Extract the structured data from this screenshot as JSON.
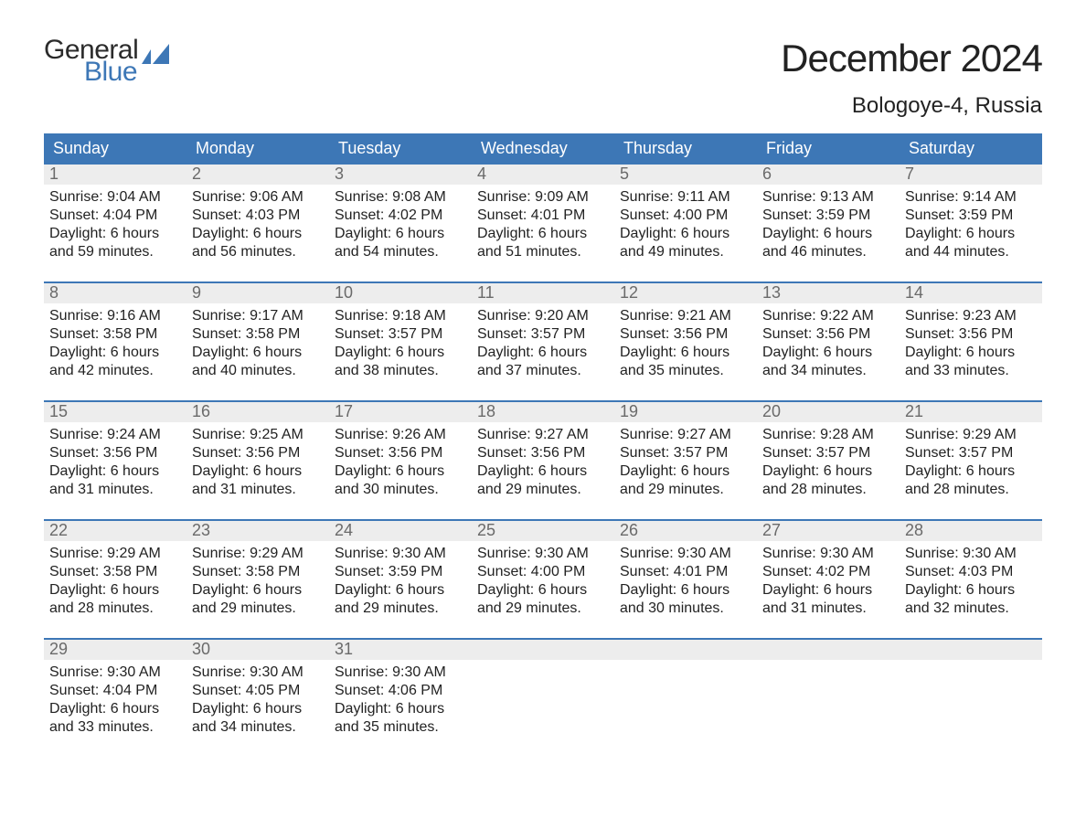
{
  "logo": {
    "word1": "General",
    "word2": "Blue",
    "text_color": "#2b2b2b",
    "accent_color": "#3d77b6"
  },
  "title": "December 2024",
  "location": "Bologoye-4, Russia",
  "colors": {
    "header_bg": "#3d77b6",
    "header_text": "#ffffff",
    "daynum_bg": "#ededed",
    "daynum_text": "#6a6a6a",
    "body_text": "#222222",
    "week_divider": "#3d77b6",
    "page_bg": "#ffffff"
  },
  "fonts": {
    "title_size_pt": 32,
    "location_size_pt": 18,
    "dow_size_pt": 14,
    "daynum_size_pt": 14,
    "cell_size_pt": 12
  },
  "days_of_week": [
    "Sunday",
    "Monday",
    "Tuesday",
    "Wednesday",
    "Thursday",
    "Friday",
    "Saturday"
  ],
  "weeks": [
    [
      {
        "num": "1",
        "sunrise": "Sunrise: 9:04 AM",
        "sunset": "Sunset: 4:04 PM",
        "d1": "Daylight: 6 hours",
        "d2": "and 59 minutes."
      },
      {
        "num": "2",
        "sunrise": "Sunrise: 9:06 AM",
        "sunset": "Sunset: 4:03 PM",
        "d1": "Daylight: 6 hours",
        "d2": "and 56 minutes."
      },
      {
        "num": "3",
        "sunrise": "Sunrise: 9:08 AM",
        "sunset": "Sunset: 4:02 PM",
        "d1": "Daylight: 6 hours",
        "d2": "and 54 minutes."
      },
      {
        "num": "4",
        "sunrise": "Sunrise: 9:09 AM",
        "sunset": "Sunset: 4:01 PM",
        "d1": "Daylight: 6 hours",
        "d2": "and 51 minutes."
      },
      {
        "num": "5",
        "sunrise": "Sunrise: 9:11 AM",
        "sunset": "Sunset: 4:00 PM",
        "d1": "Daylight: 6 hours",
        "d2": "and 49 minutes."
      },
      {
        "num": "6",
        "sunrise": "Sunrise: 9:13 AM",
        "sunset": "Sunset: 3:59 PM",
        "d1": "Daylight: 6 hours",
        "d2": "and 46 minutes."
      },
      {
        "num": "7",
        "sunrise": "Sunrise: 9:14 AM",
        "sunset": "Sunset: 3:59 PM",
        "d1": "Daylight: 6 hours",
        "d2": "and 44 minutes."
      }
    ],
    [
      {
        "num": "8",
        "sunrise": "Sunrise: 9:16 AM",
        "sunset": "Sunset: 3:58 PM",
        "d1": "Daylight: 6 hours",
        "d2": "and 42 minutes."
      },
      {
        "num": "9",
        "sunrise": "Sunrise: 9:17 AM",
        "sunset": "Sunset: 3:58 PM",
        "d1": "Daylight: 6 hours",
        "d2": "and 40 minutes."
      },
      {
        "num": "10",
        "sunrise": "Sunrise: 9:18 AM",
        "sunset": "Sunset: 3:57 PM",
        "d1": "Daylight: 6 hours",
        "d2": "and 38 minutes."
      },
      {
        "num": "11",
        "sunrise": "Sunrise: 9:20 AM",
        "sunset": "Sunset: 3:57 PM",
        "d1": "Daylight: 6 hours",
        "d2": "and 37 minutes."
      },
      {
        "num": "12",
        "sunrise": "Sunrise: 9:21 AM",
        "sunset": "Sunset: 3:56 PM",
        "d1": "Daylight: 6 hours",
        "d2": "and 35 minutes."
      },
      {
        "num": "13",
        "sunrise": "Sunrise: 9:22 AM",
        "sunset": "Sunset: 3:56 PM",
        "d1": "Daylight: 6 hours",
        "d2": "and 34 minutes."
      },
      {
        "num": "14",
        "sunrise": "Sunrise: 9:23 AM",
        "sunset": "Sunset: 3:56 PM",
        "d1": "Daylight: 6 hours",
        "d2": "and 33 minutes."
      }
    ],
    [
      {
        "num": "15",
        "sunrise": "Sunrise: 9:24 AM",
        "sunset": "Sunset: 3:56 PM",
        "d1": "Daylight: 6 hours",
        "d2": "and 31 minutes."
      },
      {
        "num": "16",
        "sunrise": "Sunrise: 9:25 AM",
        "sunset": "Sunset: 3:56 PM",
        "d1": "Daylight: 6 hours",
        "d2": "and 31 minutes."
      },
      {
        "num": "17",
        "sunrise": "Sunrise: 9:26 AM",
        "sunset": "Sunset: 3:56 PM",
        "d1": "Daylight: 6 hours",
        "d2": "and 30 minutes."
      },
      {
        "num": "18",
        "sunrise": "Sunrise: 9:27 AM",
        "sunset": "Sunset: 3:56 PM",
        "d1": "Daylight: 6 hours",
        "d2": "and 29 minutes."
      },
      {
        "num": "19",
        "sunrise": "Sunrise: 9:27 AM",
        "sunset": "Sunset: 3:57 PM",
        "d1": "Daylight: 6 hours",
        "d2": "and 29 minutes."
      },
      {
        "num": "20",
        "sunrise": "Sunrise: 9:28 AM",
        "sunset": "Sunset: 3:57 PM",
        "d1": "Daylight: 6 hours",
        "d2": "and 28 minutes."
      },
      {
        "num": "21",
        "sunrise": "Sunrise: 9:29 AM",
        "sunset": "Sunset: 3:57 PM",
        "d1": "Daylight: 6 hours",
        "d2": "and 28 minutes."
      }
    ],
    [
      {
        "num": "22",
        "sunrise": "Sunrise: 9:29 AM",
        "sunset": "Sunset: 3:58 PM",
        "d1": "Daylight: 6 hours",
        "d2": "and 28 minutes."
      },
      {
        "num": "23",
        "sunrise": "Sunrise: 9:29 AM",
        "sunset": "Sunset: 3:58 PM",
        "d1": "Daylight: 6 hours",
        "d2": "and 29 minutes."
      },
      {
        "num": "24",
        "sunrise": "Sunrise: 9:30 AM",
        "sunset": "Sunset: 3:59 PM",
        "d1": "Daylight: 6 hours",
        "d2": "and 29 minutes."
      },
      {
        "num": "25",
        "sunrise": "Sunrise: 9:30 AM",
        "sunset": "Sunset: 4:00 PM",
        "d1": "Daylight: 6 hours",
        "d2": "and 29 minutes."
      },
      {
        "num": "26",
        "sunrise": "Sunrise: 9:30 AM",
        "sunset": "Sunset: 4:01 PM",
        "d1": "Daylight: 6 hours",
        "d2": "and 30 minutes."
      },
      {
        "num": "27",
        "sunrise": "Sunrise: 9:30 AM",
        "sunset": "Sunset: 4:02 PM",
        "d1": "Daylight: 6 hours",
        "d2": "and 31 minutes."
      },
      {
        "num": "28",
        "sunrise": "Sunrise: 9:30 AM",
        "sunset": "Sunset: 4:03 PM",
        "d1": "Daylight: 6 hours",
        "d2": "and 32 minutes."
      }
    ],
    [
      {
        "num": "29",
        "sunrise": "Sunrise: 9:30 AM",
        "sunset": "Sunset: 4:04 PM",
        "d1": "Daylight: 6 hours",
        "d2": "and 33 minutes."
      },
      {
        "num": "30",
        "sunrise": "Sunrise: 9:30 AM",
        "sunset": "Sunset: 4:05 PM",
        "d1": "Daylight: 6 hours",
        "d2": "and 34 minutes."
      },
      {
        "num": "31",
        "sunrise": "Sunrise: 9:30 AM",
        "sunset": "Sunset: 4:06 PM",
        "d1": "Daylight: 6 hours",
        "d2": "and 35 minutes."
      },
      null,
      null,
      null,
      null
    ]
  ]
}
